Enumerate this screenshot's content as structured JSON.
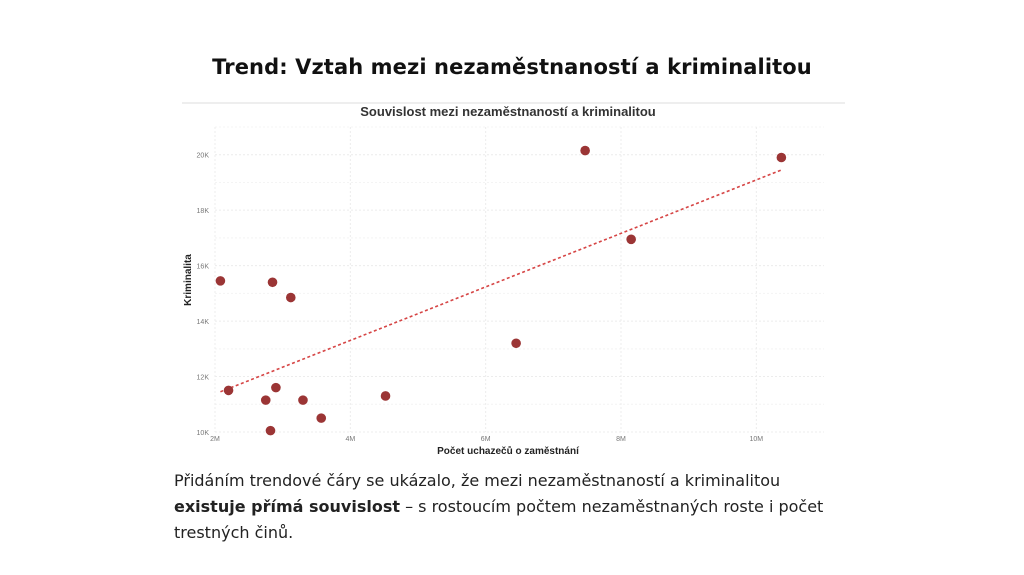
{
  "slide": {
    "title": "Trend: Vztah mezi nezaměstnaností a kriminalitou",
    "paragraph_part1": "Přidáním trendové čáry se ukázalo, že mezi nezaměstnaností a kriminalitou ",
    "paragraph_bold": "existuje přímá souvislost",
    "paragraph_part2": " – s rostoucím počtem nezaměstnaných roste i počet trestných činů."
  },
  "chart_data": {
    "type": "scatter",
    "title": "Souvislost mezi nezaměstnaností a kriminalitou",
    "xlabel": "Počet uchazečů o zaměstnání",
    "ylabel": "Kriminalita",
    "xlim": [
      2000000,
      11000000
    ],
    "ylim": [
      10000,
      21000
    ],
    "x_ticks": [
      2000000,
      4000000,
      6000000,
      8000000,
      10000000
    ],
    "x_tick_labels": [
      "2M",
      "4M",
      "6M",
      "8M",
      "10M"
    ],
    "y_ticks": [
      10000,
      12000,
      14000,
      16000,
      18000,
      20000
    ],
    "y_tick_labels": [
      "10K",
      "12K",
      "14K",
      "16K",
      "18K",
      "20K"
    ],
    "grid": true,
    "point_color": "#9b3535",
    "trend_color": "#d64545",
    "points": [
      {
        "x": 2080000,
        "y": 15450
      },
      {
        "x": 2200000,
        "y": 11500
      },
      {
        "x": 2750000,
        "y": 11150
      },
      {
        "x": 2820000,
        "y": 10050
      },
      {
        "x": 2850000,
        "y": 15400
      },
      {
        "x": 2900000,
        "y": 11600
      },
      {
        "x": 3120000,
        "y": 14850
      },
      {
        "x": 3300000,
        "y": 11150
      },
      {
        "x": 3570000,
        "y": 10500
      },
      {
        "x": 4520000,
        "y": 11300
      },
      {
        "x": 6450000,
        "y": 13200
      },
      {
        "x": 7470000,
        "y": 20150
      },
      {
        "x": 8150000,
        "y": 16950
      },
      {
        "x": 10370000,
        "y": 19900
      }
    ],
    "trendline": {
      "x": [
        2080000,
        10370000
      ],
      "y": [
        11450,
        19450
      ]
    }
  }
}
